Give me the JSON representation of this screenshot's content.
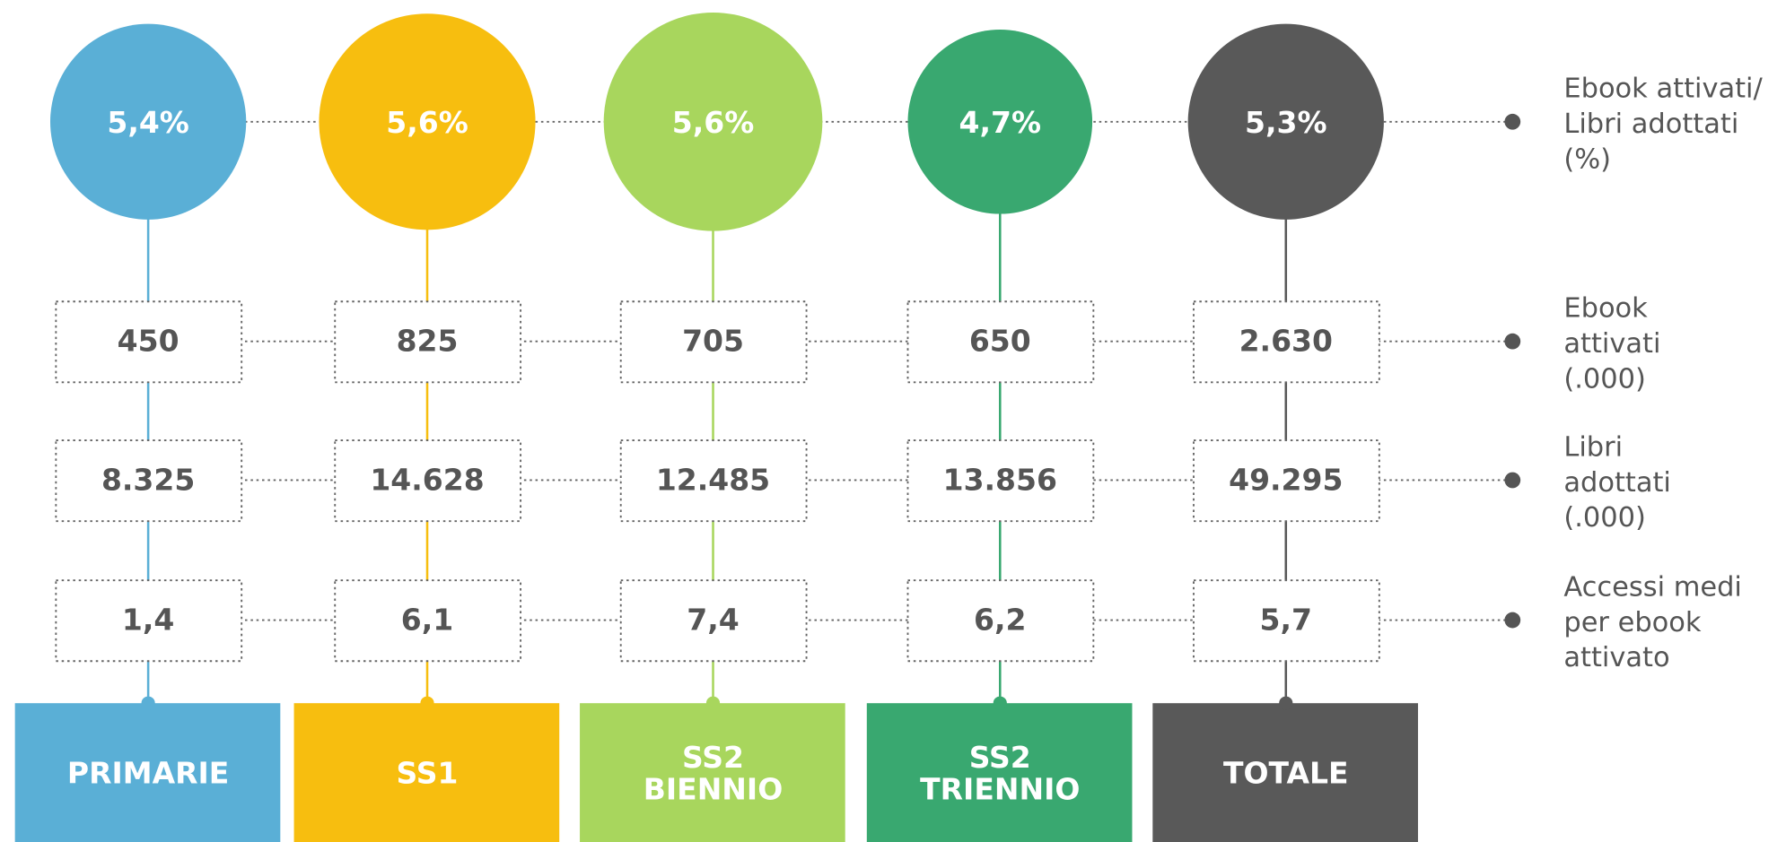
{
  "columns": [
    {
      "label": [
        "PRIMARIE"
      ],
      "color": "#5aafd6",
      "ratio": "5,4%",
      "ebook": "450",
      "libri": "8.325",
      "accessi": "1,4"
    },
    {
      "label": [
        "SS1"
      ],
      "color": "#f7be0f",
      "ratio": "5,6%",
      "ebook": "825",
      "libri": "14.628",
      "accessi": "6,1"
    },
    {
      "label": [
        "SS2",
        "BIENNIO"
      ],
      "color": "#a8d65d",
      "ratio": "5,6%",
      "ebook": "705",
      "libri": "12.485",
      "accessi": "7,4"
    },
    {
      "label": [
        "SS2",
        "TRIENNIO"
      ],
      "color": "#39a870",
      "ratio": "4,7%",
      "ebook": "650",
      "libri": "13.856",
      "accessi": "6,2"
    },
    {
      "label": [
        "TOTALE"
      ],
      "color": "#595959",
      "ratio": "5,3%",
      "ebook": "2.630",
      "libri": "49.295",
      "accessi": "5,7"
    }
  ],
  "row_labels": {
    "ratio": [
      "Ebook attivati/",
      "Libri adottati",
      "(%)"
    ],
    "ebook": [
      "Ebook",
      "attivati",
      "(.000)"
    ],
    "libri": [
      "Libri",
      "adottati",
      "(.000)"
    ],
    "accessi": [
      "Accessi medi",
      "per ebook",
      "attivato"
    ]
  }
}
